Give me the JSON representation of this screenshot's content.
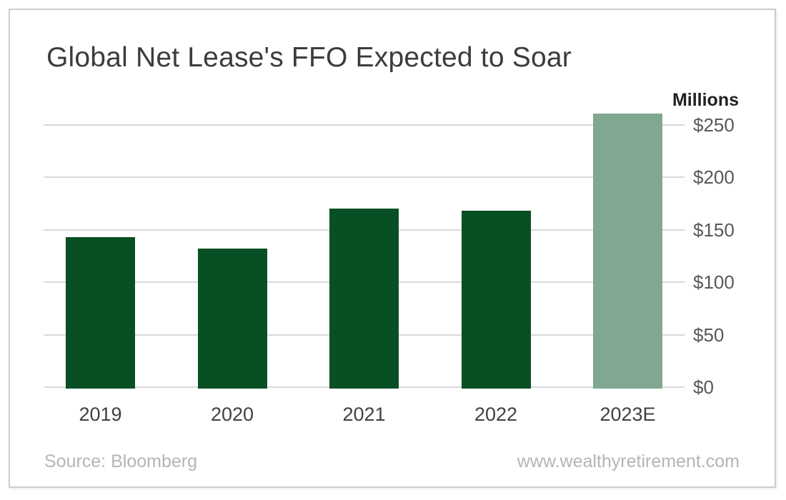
{
  "chart_data": {
    "type": "bar",
    "title": "Global Net Lease's FFO Expected to Soar",
    "unit_label": "Millions",
    "xlabel": "",
    "ylabel": "Millions",
    "categories": [
      "2019",
      "2020",
      "2021",
      "2022",
      "2023E"
    ],
    "values": [
      143,
      132,
      170,
      168,
      261
    ],
    "bar_colors": [
      "#094f24",
      "#094f24",
      "#094f24",
      "#094f24",
      "#80a78f"
    ],
    "actual_color": "#094f24",
    "estimate_color": "#80a78f",
    "estimate_category": "2023E",
    "ylim": [
      0,
      250
    ],
    "ytick_values": [
      0,
      50,
      100,
      150,
      200,
      250
    ],
    "ytick_labels": [
      "$0",
      "$50",
      "$100",
      "$150",
      "$200",
      "$250"
    ],
    "grid": "horizontal",
    "axis_side": "right",
    "legend": "none"
  },
  "footer": {
    "source": "Source: Bloomberg",
    "website": "www.wealthyretirement.com"
  }
}
